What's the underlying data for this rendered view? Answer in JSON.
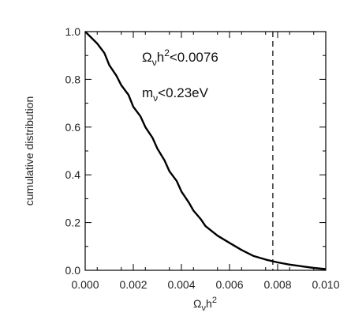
{
  "chart_data": {
    "type": "line",
    "xlabel": "Ω",
    "xlabel_sub": "ν",
    "xlabel_tail": "h",
    "xlabel_sup": "2",
    "ylabel": "cumulative distribution",
    "xlim": [
      0.0,
      0.01
    ],
    "ylim": [
      0.0,
      1.0
    ],
    "x_ticks": [
      "0.000",
      "0.002",
      "0.004",
      "0.006",
      "0.008",
      "0.010"
    ],
    "y_ticks": [
      "0.0",
      "0.2",
      "0.4",
      "0.6",
      "0.8",
      "1.0"
    ],
    "grid": false,
    "series": [
      {
        "x": [
          0.0,
          0.0002,
          0.0005,
          0.0008,
          0.001,
          0.0013,
          0.0015,
          0.0018,
          0.002,
          0.0023,
          0.0025,
          0.0028,
          0.003,
          0.0033,
          0.0035,
          0.0038,
          0.004,
          0.0043,
          0.0045,
          0.0048,
          0.005,
          0.0055,
          0.006,
          0.0065,
          0.007,
          0.0075,
          0.008,
          0.0085,
          0.009,
          0.0095,
          0.01
        ],
        "values": [
          1.0,
          0.98,
          0.95,
          0.91,
          0.86,
          0.815,
          0.775,
          0.735,
          0.685,
          0.645,
          0.6,
          0.555,
          0.51,
          0.46,
          0.415,
          0.375,
          0.33,
          0.285,
          0.25,
          0.215,
          0.185,
          0.145,
          0.115,
          0.085,
          0.06,
          0.045,
          0.033,
          0.024,
          0.017,
          0.01,
          0.005
        ]
      }
    ],
    "vline_x": 0.0078,
    "annotations": [
      {
        "base": "Ω",
        "sub": "ν",
        "tail": "h",
        "sup": "2",
        "rest": "<0.0076"
      },
      {
        "base": "m",
        "sub": "ν",
        "tail": "",
        "sup": "",
        "rest": "<0.23eV"
      }
    ]
  }
}
